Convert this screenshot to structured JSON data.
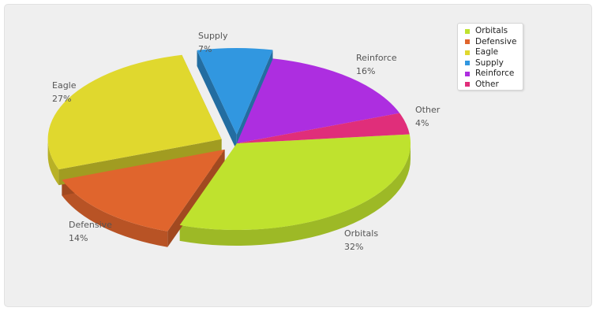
{
  "chart_data": {
    "type": "pie",
    "title": "",
    "legend_position": "top-right",
    "slices": [
      {
        "name": "Orbitals",
        "value": 32,
        "label": "32%",
        "color": "#bfe22e",
        "exploded": false
      },
      {
        "name": "Defensive",
        "value": 14,
        "label": "14%",
        "color": "#e0652d",
        "exploded": true
      },
      {
        "name": "Eagle",
        "value": 27,
        "label": "27%",
        "color": "#e0d82e",
        "exploded": true
      },
      {
        "name": "Supply",
        "value": 7,
        "label": "7%",
        "color": "#3197e0",
        "exploded": true
      },
      {
        "name": "Reinforce",
        "value": 16,
        "label": "16%",
        "color": "#ad2ee0",
        "exploded": false
      },
      {
        "name": "Other",
        "value": 4,
        "label": "4%",
        "color": "#e02e7a",
        "exploded": false
      }
    ]
  }
}
